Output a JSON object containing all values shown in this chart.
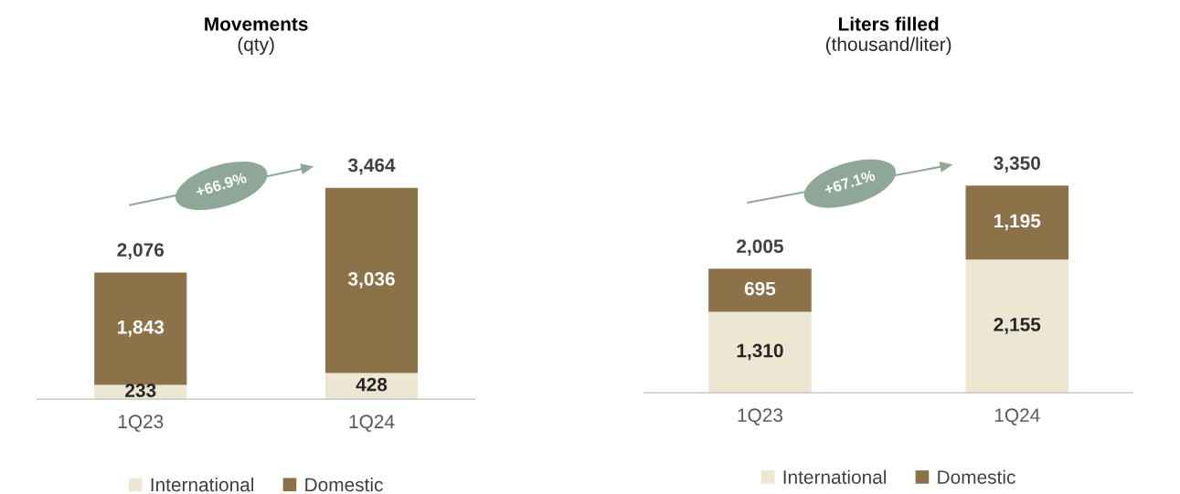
{
  "chart_data": [
    {
      "type": "bar",
      "title": "Movements",
      "subtitle": "(qty)",
      "categories": [
        "1Q23",
        "1Q24"
      ],
      "stacked": true,
      "legend": "bottom",
      "tick_labels": "x",
      "grid": false,
      "series": [
        {
          "name": "International",
          "color": "#ede6d3",
          "values": [
            233,
            428
          ],
          "value_labels": [
            "233",
            "428"
          ]
        },
        {
          "name": "Domestic",
          "color": "#8b7249",
          "values": [
            1843,
            3036
          ],
          "value_labels": [
            "1,843",
            "3,036"
          ]
        }
      ],
      "totals": [
        "2,076",
        "3,464"
      ],
      "annotations": [
        "+66.9%"
      ]
    },
    {
      "type": "bar",
      "title": "Liters filled",
      "subtitle": "(thousand/liter)",
      "categories": [
        "1Q23",
        "1Q24"
      ],
      "stacked": true,
      "legend": "bottom",
      "tick_labels": "x",
      "grid": false,
      "series": [
        {
          "name": "International",
          "color": "#ede6d3",
          "values": [
            1310,
            2155
          ],
          "value_labels": [
            "1,310",
            "2,155"
          ]
        },
        {
          "name": "Domestic",
          "color": "#8b7249",
          "values": [
            695,
            1195
          ],
          "value_labels": [
            "695",
            "1,195"
          ]
        }
      ],
      "totals": [
        "2,005",
        "3,350"
      ],
      "annotations": [
        "+67.1%"
      ]
    }
  ]
}
